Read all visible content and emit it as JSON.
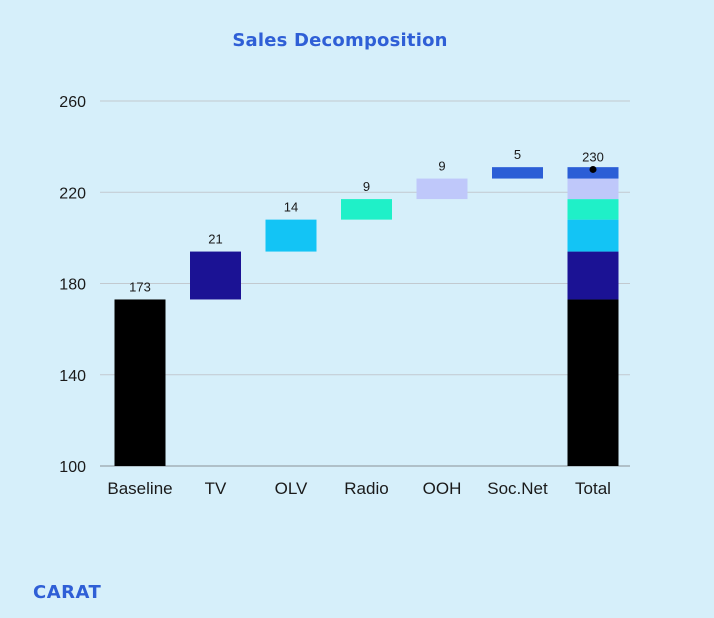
{
  "chart_data": {
    "type": "bar",
    "subtype": "waterfall",
    "title": "Sales Decomposition",
    "categories": [
      "Baseline",
      "TV",
      "OLV",
      "Radio",
      "OOH",
      "Soc.Net",
      "Total"
    ],
    "values": [
      173,
      21,
      14,
      9,
      9,
      5,
      230
    ],
    "data_labels": [
      "173",
      "21",
      "14",
      "9",
      "9",
      "5",
      "230"
    ],
    "colors": [
      "#000000",
      "#1b1294",
      "#13c4f5",
      "#1ff0c8",
      "#bfc8fa",
      "#2b5ed6"
    ],
    "ylim": [
      100,
      260
    ],
    "yticks": [
      100,
      140,
      180,
      220,
      260
    ],
    "ytick_labels": [
      "100",
      "140",
      "180",
      "220",
      "260"
    ],
    "grid": true,
    "total_marker": true
  },
  "logo": {
    "text": "CARAT"
  }
}
